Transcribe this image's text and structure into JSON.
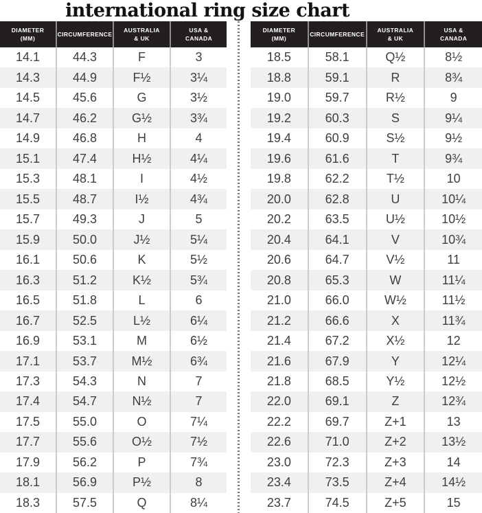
{
  "title": "international ring size chart",
  "colors": {
    "header_bg": "#231f20",
    "header_text": "#ffffff",
    "row_alt_bg": "#f0f0f1",
    "cell_text": "#3e3e40",
    "grid_line": "#cbcbcd",
    "header_grid_line": "#8e8e8e",
    "divider_dot": "#767678"
  },
  "chart_data": {
    "type": "table",
    "title": "international ring size chart",
    "columns": [
      "DIAMETER\n(mm)",
      "CIRCUMFERENCE",
      "AUSTRALIA\n& UK",
      "USA &\nCANADA"
    ],
    "tables": [
      {
        "position": "left",
        "rows": [
          [
            "14.1",
            "44.3",
            "F",
            "3"
          ],
          [
            "14.3",
            "44.9",
            "F½",
            "3¼"
          ],
          [
            "14.5",
            "45.6",
            "G",
            "3½"
          ],
          [
            "14.7",
            "46.2",
            "G½",
            "3¾"
          ],
          [
            "14.9",
            "46.8",
            "H",
            "4"
          ],
          [
            "15.1",
            "47.4",
            "H½",
            "4¼"
          ],
          [
            "15.3",
            "48.1",
            "I",
            "4½"
          ],
          [
            "15.5",
            "48.7",
            "I½",
            "4¾"
          ],
          [
            "15.7",
            "49.3",
            "J",
            "5"
          ],
          [
            "15.9",
            "50.0",
            "J½",
            "5¼"
          ],
          [
            "16.1",
            "50.6",
            "K",
            "5½"
          ],
          [
            "16.3",
            "51.2",
            "K½",
            "5¾"
          ],
          [
            "16.5",
            "51.8",
            "L",
            "6"
          ],
          [
            "16.7",
            "52.5",
            "L½",
            "6¼"
          ],
          [
            "16.9",
            "53.1",
            "M",
            "6½"
          ],
          [
            "17.1",
            "53.7",
            "M½",
            "6¾"
          ],
          [
            "17.3",
            "54.3",
            "N",
            "7"
          ],
          [
            "17.4",
            "54.7",
            "N½",
            "7"
          ],
          [
            "17.5",
            "55.0",
            "O",
            "7¼"
          ],
          [
            "17.7",
            "55.6",
            "O½",
            "7½"
          ],
          [
            "17.9",
            "56.2",
            "P",
            "7¾"
          ],
          [
            "18.1",
            "56.9",
            "P½",
            "8"
          ],
          [
            "18.3",
            "57.5",
            "Q",
            "8¼"
          ]
        ]
      },
      {
        "position": "right",
        "rows": [
          [
            "18.5",
            "58.1",
            "Q½",
            "8½"
          ],
          [
            "18.8",
            "59.1",
            "R",
            "8¾"
          ],
          [
            "19.0",
            "59.7",
            "R½",
            "9"
          ],
          [
            "19.2",
            "60.3",
            "S",
            "9¼"
          ],
          [
            "19.4",
            "60.9",
            "S½",
            "9½"
          ],
          [
            "19.6",
            "61.6",
            "T",
            "9¾"
          ],
          [
            "19.8",
            "62.2",
            "T½",
            "10"
          ],
          [
            "20.0",
            "62.8",
            "U",
            "10¼"
          ],
          [
            "20.2",
            "63.5",
            "U½",
            "10½"
          ],
          [
            "20.4",
            "64.1",
            "V",
            "10¾"
          ],
          [
            "20.6",
            "64.7",
            "V½",
            "11"
          ],
          [
            "20.8",
            "65.3",
            "W",
            "11¼"
          ],
          [
            "21.0",
            "66.0",
            "W½",
            "11½"
          ],
          [
            "21.2",
            "66.6",
            "X",
            "11¾"
          ],
          [
            "21.4",
            "67.2",
            "X½",
            "12"
          ],
          [
            "21.6",
            "67.9",
            "Y",
            "12¼"
          ],
          [
            "21.8",
            "68.5",
            "Y½",
            "12½"
          ],
          [
            "22.0",
            "69.1",
            "Z",
            "12¾"
          ],
          [
            "22.2",
            "69.7",
            "Z+1",
            "13"
          ],
          [
            "22.6",
            "71.0",
            "Z+2",
            "13½"
          ],
          [
            "23.0",
            "72.3",
            "Z+3",
            "14"
          ],
          [
            "23.4",
            "73.5",
            "Z+4",
            "14½"
          ],
          [
            "23.7",
            "74.5",
            "Z+5",
            "15"
          ]
        ]
      }
    ]
  }
}
